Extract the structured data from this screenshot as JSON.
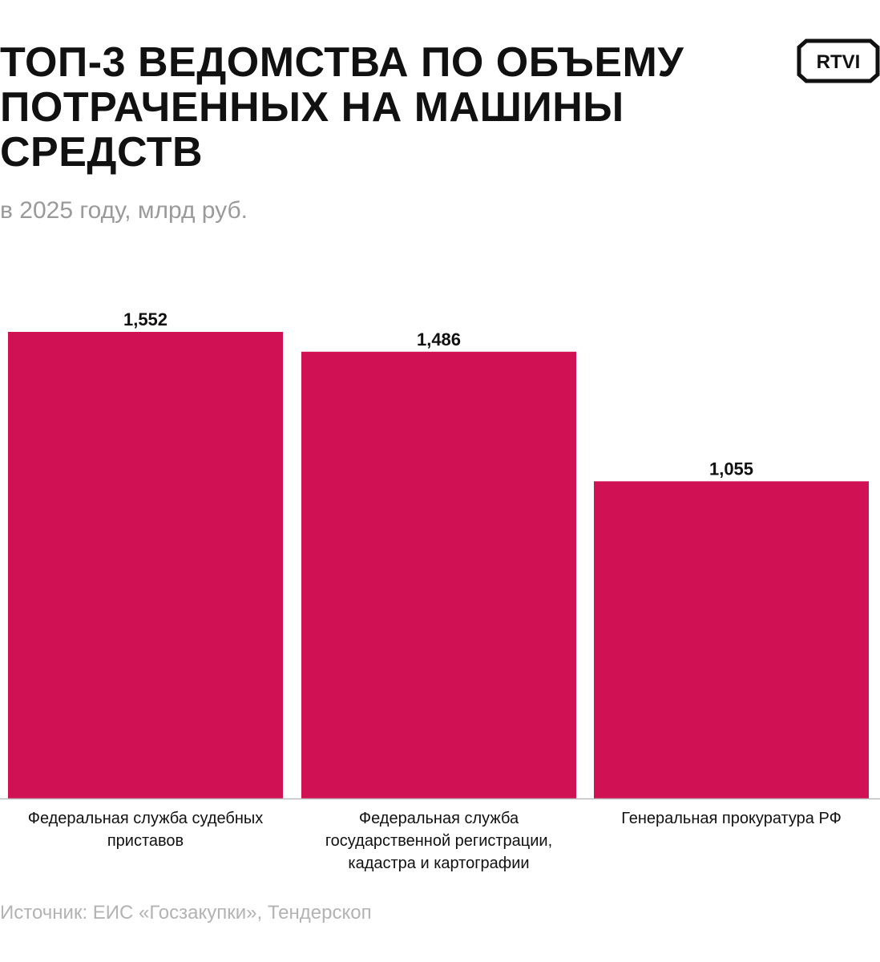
{
  "header": {
    "title": "ТОП-3 ВЕДОМСТВА ПО ОБЪЕМУ ПОТРАЧЕННЫХ НА МАШИНЫ СРЕДСТВ",
    "subtitle": "в 2025 году, млрд руб.",
    "logo_text": "RTVI"
  },
  "footer": {
    "source": "Источник: ЕИС «Госзакупки», Тендерскоп"
  },
  "colors": {
    "bar": "#d01153",
    "axis": "#bbbbbb",
    "text": "#111111"
  },
  "chart_data": {
    "type": "bar",
    "title": "ТОП-3 ВЕДОМСТВА ПО ОБЪЕМУ ПОТРАЧЕННЫХ НА МАШИНЫ СРЕДСТВ",
    "subtitle": "в 2025 году, млрд руб.",
    "xlabel": "",
    "ylabel": "",
    "ylim": [
      0,
      1.552
    ],
    "grid": false,
    "categories": [
      [
        "Федеральная служба судебных",
        "приставов"
      ],
      [
        "Федеральная служба",
        "государственной регистрации,",
        "кадастра и картографии"
      ],
      [
        "Генеральная прокуратура РФ"
      ]
    ],
    "values": [
      1.552,
      1.486,
      1.055
    ],
    "value_labels": [
      "1,552",
      "1,486",
      "1,055"
    ]
  }
}
